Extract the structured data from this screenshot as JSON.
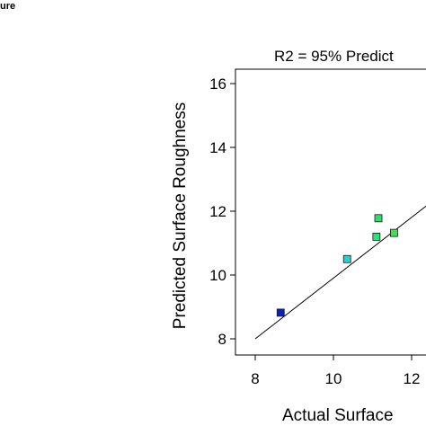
{
  "corner_label": "ure",
  "chart_data": {
    "type": "scatter",
    "title": "R2 = 95% Predict",
    "xlabel": "Actual Surface",
    "ylabel": "Predicted Surface Roughness",
    "xlim": [
      7.6,
      13.2
    ],
    "ylim": [
      7.6,
      16.5
    ],
    "x_ticks": [
      "8",
      "10",
      "12"
    ],
    "y_ticks": [
      "8",
      "10",
      "12",
      "14",
      "16"
    ],
    "grid": false,
    "legend": "none",
    "fit_line": {
      "x": [
        8.0,
        13.2
      ],
      "y": [
        8.0,
        12.95
      ]
    },
    "points": [
      {
        "x": 8.65,
        "y": 8.82,
        "color": "#0a1fbf"
      },
      {
        "x": 10.35,
        "y": 10.5,
        "color": "#1fd4d9"
      },
      {
        "x": 11.1,
        "y": 11.2,
        "color": "#2fe07a"
      },
      {
        "x": 11.15,
        "y": 11.78,
        "color": "#2ee06a"
      },
      {
        "x": 11.55,
        "y": 11.32,
        "color": "#40e050"
      }
    ]
  }
}
